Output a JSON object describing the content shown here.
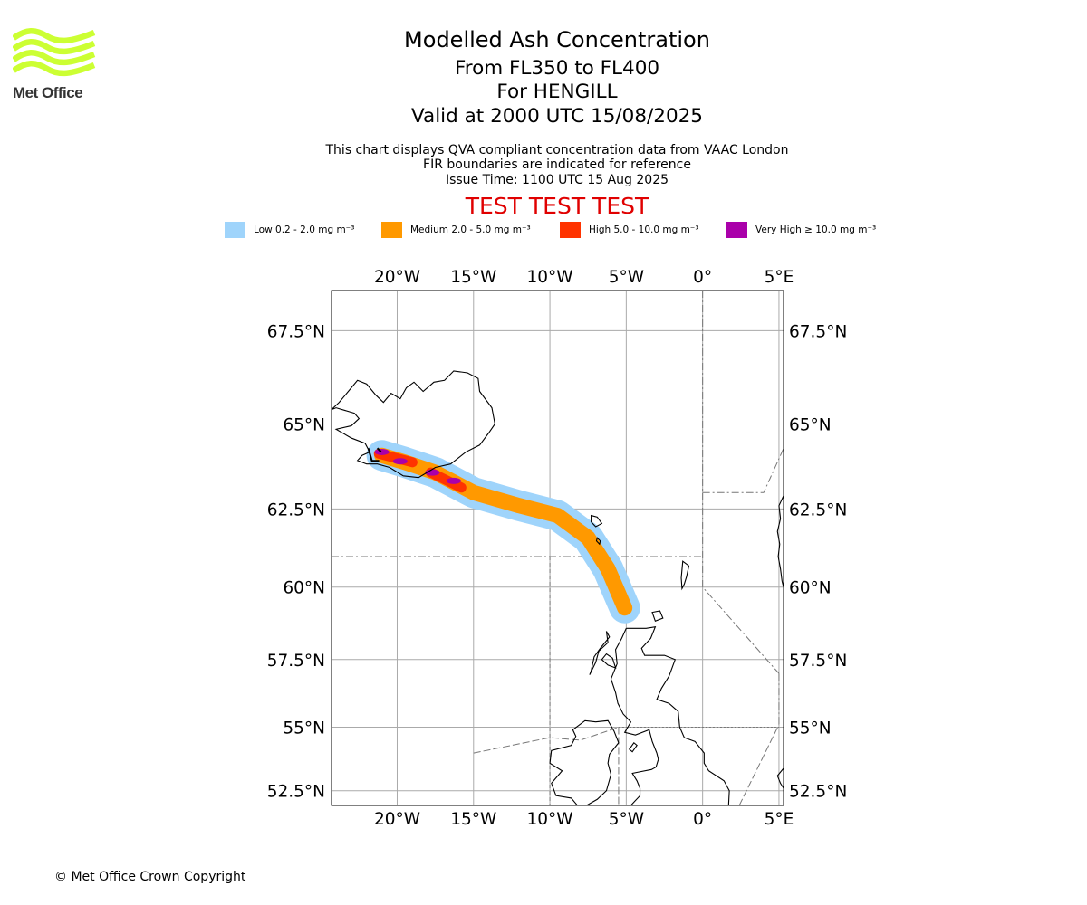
{
  "logo": {
    "text": "Met Office",
    "wave_color": "#ccff33",
    "text_color": "#333333"
  },
  "title": {
    "line1": "Modelled Ash Concentration",
    "line2": "From FL350 to FL400",
    "line3": "For HENGILL",
    "line4": "Valid at 2000 UTC 15/08/2025"
  },
  "subtitle": {
    "line1": "This chart displays QVA compliant concentration data from VAAC London",
    "line2": "FIR boundaries are indicated for reference",
    "line3": "Issue Time: 1100 UTC 15 Aug 2025"
  },
  "test_banner": {
    "text": "TEST TEST TEST",
    "color": "#e00000"
  },
  "legend": [
    {
      "label": "Low 0.2 - 2.0 mg m⁻³",
      "color": "#9fd4fb"
    },
    {
      "label": "Medium 2.0 - 5.0 mg m⁻³",
      "color": "#ff9900"
    },
    {
      "label": "High 5.0 - 10.0 mg m⁻³",
      "color": "#ff3300"
    },
    {
      "label": "Very High ≥ 10.0 mg m⁻³",
      "color": "#aa00aa"
    }
  ],
  "map": {
    "projection": "lat-lon",
    "lon_range": [
      -24.3,
      5.3
    ],
    "lat_range": [
      51.9,
      68.5
    ],
    "lon_ticks": [
      {
        "value": -20,
        "label": "20°W"
      },
      {
        "value": -15,
        "label": "15°W"
      },
      {
        "value": -10,
        "label": "10°W"
      },
      {
        "value": -5,
        "label": "5°W"
      },
      {
        "value": 0,
        "label": "0°"
      },
      {
        "value": 5,
        "label": "5°E"
      }
    ],
    "lat_ticks": [
      {
        "value": 67.5,
        "label": "67.5°N"
      },
      {
        "value": 65,
        "label": "65°N"
      },
      {
        "value": 62.5,
        "label": "62.5°N"
      },
      {
        "value": 60,
        "label": "60°N"
      },
      {
        "value": 57.5,
        "label": "57.5°N"
      },
      {
        "value": 55,
        "label": "55°N"
      },
      {
        "value": 52.5,
        "label": "52.5°N"
      }
    ],
    "grid": true,
    "gridline_color": "#aaaaaa",
    "ash_plume_path": [
      [
        -21.0,
        64.1
      ],
      [
        -19.5,
        63.9
      ],
      [
        -17.5,
        63.6
      ],
      [
        -15.0,
        63.0
      ],
      [
        -12.0,
        62.6
      ],
      [
        -9.5,
        62.3
      ],
      [
        -7.5,
        61.6
      ],
      [
        -6.2,
        60.6
      ],
      [
        -5.1,
        59.3
      ]
    ],
    "high_segments": [
      [
        [
          -21.2,
          64.15
        ],
        [
          -19.0,
          63.9
        ]
      ],
      [
        [
          -17.8,
          63.6
        ],
        [
          -15.8,
          63.15
        ]
      ]
    ],
    "very_high_points": [
      [
        -21.0,
        64.2
      ],
      [
        -19.8,
        63.93
      ],
      [
        -17.7,
        63.6
      ],
      [
        -16.3,
        63.35
      ]
    ],
    "coastline_color": "#000000",
    "fir_boundary_color": "#777777"
  },
  "copyright": "© Met Office Crown Copyright"
}
